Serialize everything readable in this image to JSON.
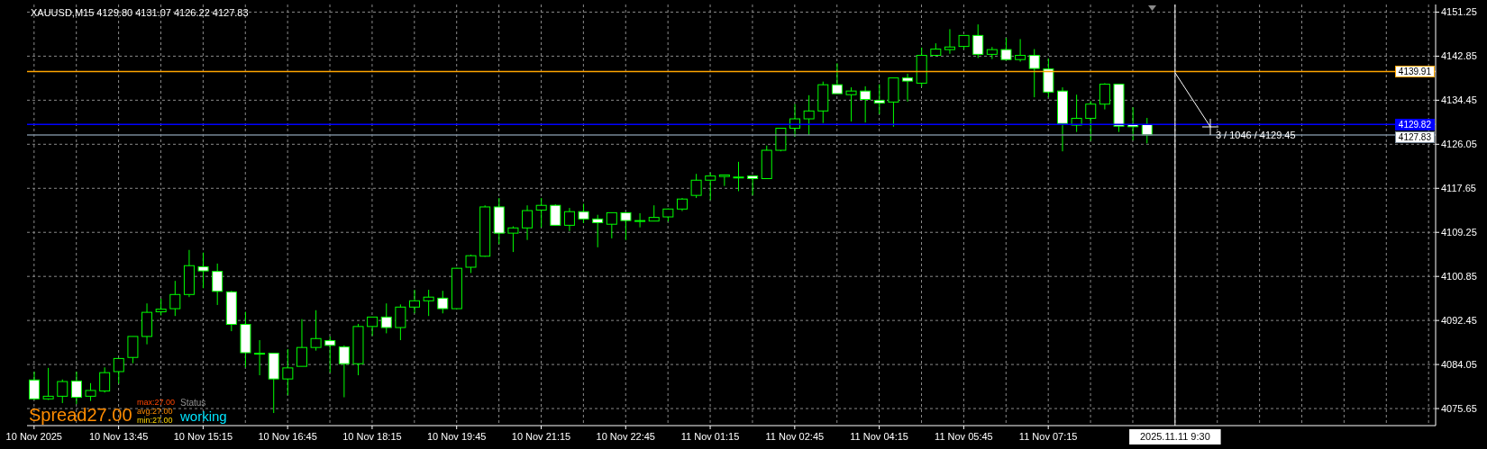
{
  "chart_data": {
    "type": "candlestick",
    "title": "XAUUSD,M15 4129.80 4131.07 4126.22 4127.83",
    "categories": [
      "10 Nov 2025",
      null,
      null,
      null,
      null,
      null,
      "10 Nov 13:45",
      null,
      null,
      null,
      null,
      null,
      "10 Nov 15:15",
      null,
      null,
      null,
      null,
      null,
      "10 Nov 16:45",
      null,
      null,
      null,
      null,
      null,
      "10 Nov 18:15",
      null,
      null,
      null,
      null,
      null,
      "10 Nov 19:45",
      null,
      null,
      null,
      null,
      null,
      "10 Nov 21:15",
      null,
      null,
      null,
      null,
      null,
      "10 Nov 22:45",
      null,
      null,
      null,
      null,
      null,
      "11 Nov 01:15",
      null,
      null,
      null,
      null,
      null,
      "11 Nov 02:45",
      null,
      null,
      null,
      null,
      null,
      "11 Nov 04:15",
      null,
      null,
      null,
      null,
      null,
      "11 Nov 05:45",
      null,
      null,
      null,
      null,
      null,
      "11 Nov 07:15",
      null,
      null,
      null,
      null,
      null,
      null,
      null,
      null,
      "2025.11.11 9:30",
      null,
      null,
      null,
      null,
      null,
      null,
      null,
      null,
      null,
      null,
      null,
      null,
      null,
      null,
      null,
      null,
      null,
      null
    ],
    "ohlc": [
      [
        4081.1,
        4082.7,
        4077.3,
        4077.5
      ],
      [
        4077.5,
        4083.4,
        4077.3,
        4078.0
      ],
      [
        4078.0,
        4081.2,
        4076.7,
        4080.8
      ],
      [
        4080.9,
        4082.7,
        4076.5,
        4077.8
      ],
      [
        4078.0,
        4080.5,
        4077.1,
        4079.1
      ],
      [
        4079.0,
        4083.5,
        4078.7,
        4082.5
      ],
      [
        4082.7,
        4085.3,
        4080.4,
        4085.2
      ],
      [
        4085.4,
        4089.4,
        4084.3,
        4089.4
      ],
      [
        4089.4,
        4095.7,
        4087.9,
        4094.0
      ],
      [
        4094.1,
        4096.6,
        4093.4,
        4094.6
      ],
      [
        4094.7,
        4100.0,
        4093.3,
        4097.4
      ],
      [
        4097.4,
        4105.9,
        4096.9,
        4102.9
      ],
      [
        4102.7,
        4105.4,
        4098.6,
        4101.9
      ],
      [
        4101.8,
        4103.3,
        4095.4,
        4098.0
      ],
      [
        4097.9,
        4098.1,
        4090.4,
        4091.7
      ],
      [
        4091.7,
        4094.1,
        4083.5,
        4086.3
      ],
      [
        4086.2,
        4088.7,
        4082.0,
        4086.2
      ],
      [
        4086.2,
        4086.2,
        4074.8,
        4081.3
      ],
      [
        4081.3,
        4087.0,
        4078.2,
        4083.4
      ],
      [
        4083.7,
        4092.7,
        4083.7,
        4087.3
      ],
      [
        4087.3,
        4094.4,
        4086.7,
        4089.0
      ],
      [
        4088.6,
        4089.4,
        4082.5,
        4087.7
      ],
      [
        4087.4,
        4087.7,
        4077.8,
        4084.2
      ],
      [
        4084.2,
        4091.8,
        4082.0,
        4091.3
      ],
      [
        4091.3,
        4093.1,
        4089.5,
        4093.1
      ],
      [
        4093.1,
        4095.7,
        4090.0,
        4091.1
      ],
      [
        4091.1,
        4095.5,
        4088.7,
        4095.0
      ],
      [
        4095.0,
        4098.3,
        4093.8,
        4096.2
      ],
      [
        4096.2,
        4098.3,
        4093.3,
        4096.9
      ],
      [
        4096.7,
        4098.1,
        4093.8,
        4094.7
      ],
      [
        4094.7,
        4102.5,
        4094.7,
        4102.4
      ],
      [
        4102.6,
        4105.0,
        4101.5,
        4104.8
      ],
      [
        4104.7,
        4114.4,
        4104.6,
        4114.1
      ],
      [
        4114.1,
        4115.8,
        4107.0,
        4109.1
      ],
      [
        4109.1,
        4110.4,
        4105.5,
        4110.1
      ],
      [
        4110.1,
        4114.4,
        4107.8,
        4113.4
      ],
      [
        4113.5,
        4115.8,
        4110.2,
        4114.4
      ],
      [
        4114.4,
        4114.6,
        4110.6,
        4110.6
      ],
      [
        4110.6,
        4113.9,
        4109.5,
        4113.2
      ],
      [
        4113.2,
        4114.7,
        4111.0,
        4111.8
      ],
      [
        4111.8,
        4112.6,
        4106.4,
        4111.1
      ],
      [
        4110.8,
        4113.0,
        4108.1,
        4113.0
      ],
      [
        4113.0,
        4113.0,
        4107.8,
        4111.5
      ],
      [
        4111.5,
        4112.9,
        4110.2,
        4111.5
      ],
      [
        4111.4,
        4114.4,
        4111.4,
        4112.1
      ],
      [
        4112.2,
        4113.8,
        4111.3,
        4113.7
      ],
      [
        4113.7,
        4115.8,
        4113.3,
        4115.6
      ],
      [
        4116.3,
        4120.4,
        4115.8,
        4119.2
      ],
      [
        4119.2,
        4120.6,
        4115.4,
        4120.0
      ],
      [
        4119.9,
        4120.2,
        4118.1,
        4120.2
      ],
      [
        4119.8,
        4122.7,
        4117.1,
        4119.8
      ],
      [
        4120.0,
        4120.0,
        4116.3,
        4119.5
      ],
      [
        4119.5,
        4125.8,
        4119.5,
        4124.9
      ],
      [
        4124.9,
        4129.1,
        4124.7,
        4129.1
      ],
      [
        4129.1,
        4133.7,
        4127.5,
        4130.9
      ],
      [
        4130.9,
        4135.4,
        4127.8,
        4132.4
      ],
      [
        4132.4,
        4138.0,
        4130.1,
        4137.4
      ],
      [
        4137.4,
        4141.5,
        4135.7,
        4135.7
      ],
      [
        4135.5,
        4136.9,
        4130.4,
        4136.2
      ],
      [
        4136.2,
        4137.1,
        4130.2,
        4134.6
      ],
      [
        4134.4,
        4137.5,
        4131.8,
        4133.9
      ],
      [
        4134.1,
        4138.7,
        4129.4,
        4138.7
      ],
      [
        4138.7,
        4139.5,
        4134.2,
        4138.1
      ],
      [
        4137.7,
        4144.5,
        4137.0,
        4143.0
      ],
      [
        4143.0,
        4145.3,
        4142.9,
        4144.2
      ],
      [
        4144.1,
        4148.0,
        4143.3,
        4144.6
      ],
      [
        4144.7,
        4146.8,
        4144.2,
        4146.8
      ],
      [
        4146.8,
        4148.9,
        4142.5,
        4143.2
      ],
      [
        4143.2,
        4144.6,
        4142.3,
        4144.1
      ],
      [
        4144.1,
        4146.3,
        4142.0,
        4142.2
      ],
      [
        4142.2,
        4146.1,
        4141.8,
        4143.0
      ],
      [
        4143.0,
        4144.2,
        4135.0,
        4140.5
      ],
      [
        4140.4,
        4142.4,
        4135.0,
        4136.0
      ],
      [
        4136.2,
        4136.9,
        4124.7,
        4130.0
      ],
      [
        4129.7,
        4135.5,
        4128.4,
        4131.0
      ],
      [
        4131.0,
        4134.3,
        4126.7,
        4133.7
      ],
      [
        4133.7,
        4137.7,
        4132.7,
        4137.5
      ],
      [
        4137.5,
        4137.5,
        4128.4,
        4129.5
      ],
      [
        4129.8,
        4133.1,
        4126.8,
        4129.4
      ],
      [
        4129.8,
        4131.07,
        4126.22,
        4127.83
      ],
      null,
      null,
      null,
      null,
      null,
      null,
      null,
      null,
      null,
      null,
      null,
      null,
      null,
      null,
      null,
      null,
      null,
      null,
      null,
      null
    ],
    "color": "#00ff00",
    "ylim": [
      4072.4,
      4152.7
    ],
    "yticks": [
      4075.65,
      4084.05,
      4092.45,
      4100.85,
      4109.25,
      4117.65,
      4126.05,
      4134.45,
      4142.85,
      4151.25
    ],
    "grid": true,
    "ref_lines": [
      {
        "axis": "y",
        "value": 4139.91,
        "label": "4139.91",
        "color": "#ffa500"
      },
      {
        "axis": "y",
        "value": 4129.82,
        "label": "4129.82",
        "color": "#0000ff"
      },
      {
        "axis": "y",
        "value": 4127.83,
        "label": "4127.83",
        "color": "#778899"
      },
      {
        "axis": "x",
        "value": "2025.11.11 9:30",
        "color": "#ffffff"
      }
    ],
    "annotations": [
      "Spread27.00",
      "max:27.00",
      "avg:27.00",
      "min:27.00",
      "Status",
      "working",
      {
        "text": "3 / 1046 / 4129.45",
        "y": 4129.45
      }
    ]
  }
}
